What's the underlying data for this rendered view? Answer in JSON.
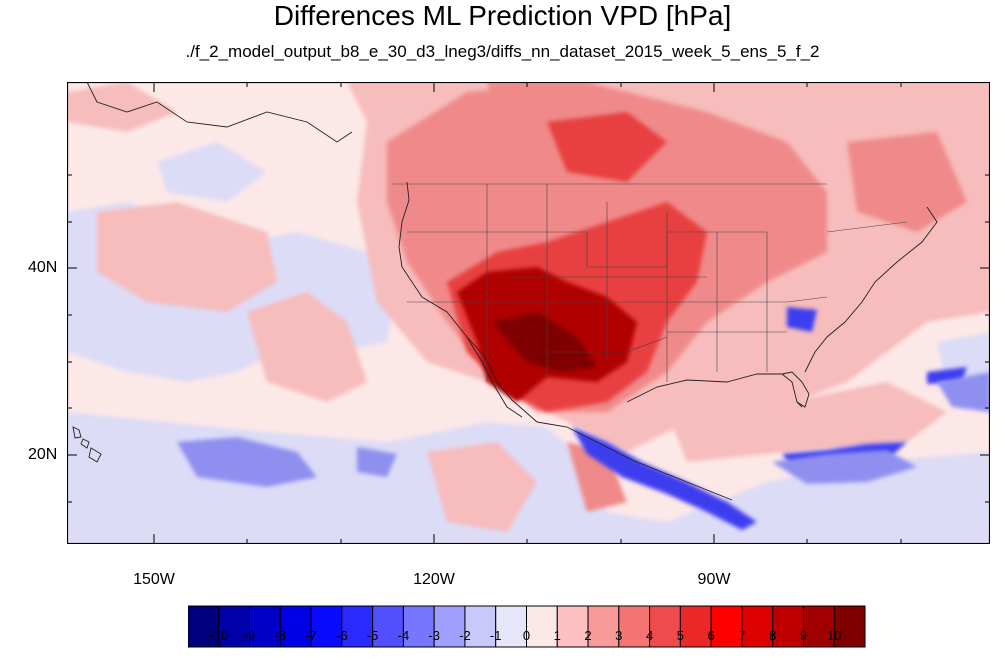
{
  "title": "Differences ML Prediction VPD [hPa]",
  "subtitle": "./f_2_model_output_b8_e_30_d3_lneg3/diffs_nn_dataset_2015_week_5_ens_5_f_2",
  "axes": {
    "lat_labels": [
      "40N",
      "20N"
    ],
    "lon_labels": [
      "150W",
      "120W",
      "90W"
    ]
  },
  "colorbar": {
    "labels": [
      "-10",
      "-9",
      "-8",
      "-7",
      "-6",
      "-5",
      "-4",
      "-3",
      "-2",
      "-1",
      "0",
      "1",
      "2",
      "3",
      "4",
      "5",
      "6",
      "7",
      "8",
      "9",
      "10"
    ],
    "colors": [
      "#00007f",
      "#0000a8",
      "#0000c8",
      "#0000e6",
      "#0a0aff",
      "#2a2aff",
      "#5050ff",
      "#7676ff",
      "#9f9ffd",
      "#c8c8fa",
      "#e6e6fa",
      "#fde8e8",
      "#fcc0c0",
      "#f99a9a",
      "#f47474",
      "#ee4c4c",
      "#ea2828",
      "#ff0000",
      "#dd0000",
      "#c00000",
      "#a00000",
      "#7f0000"
    ]
  },
  "colors": {
    "background_field": "#fde8e8",
    "light_red": "#f7b6b6",
    "mid_red": "#ef7a7a",
    "strong_red": "#e03030",
    "dark_red": "#a00000",
    "light_blue": "#d6d8f6",
    "mid_blue": "#8c8cf0",
    "strong_blue": "#2a2ae0"
  }
}
